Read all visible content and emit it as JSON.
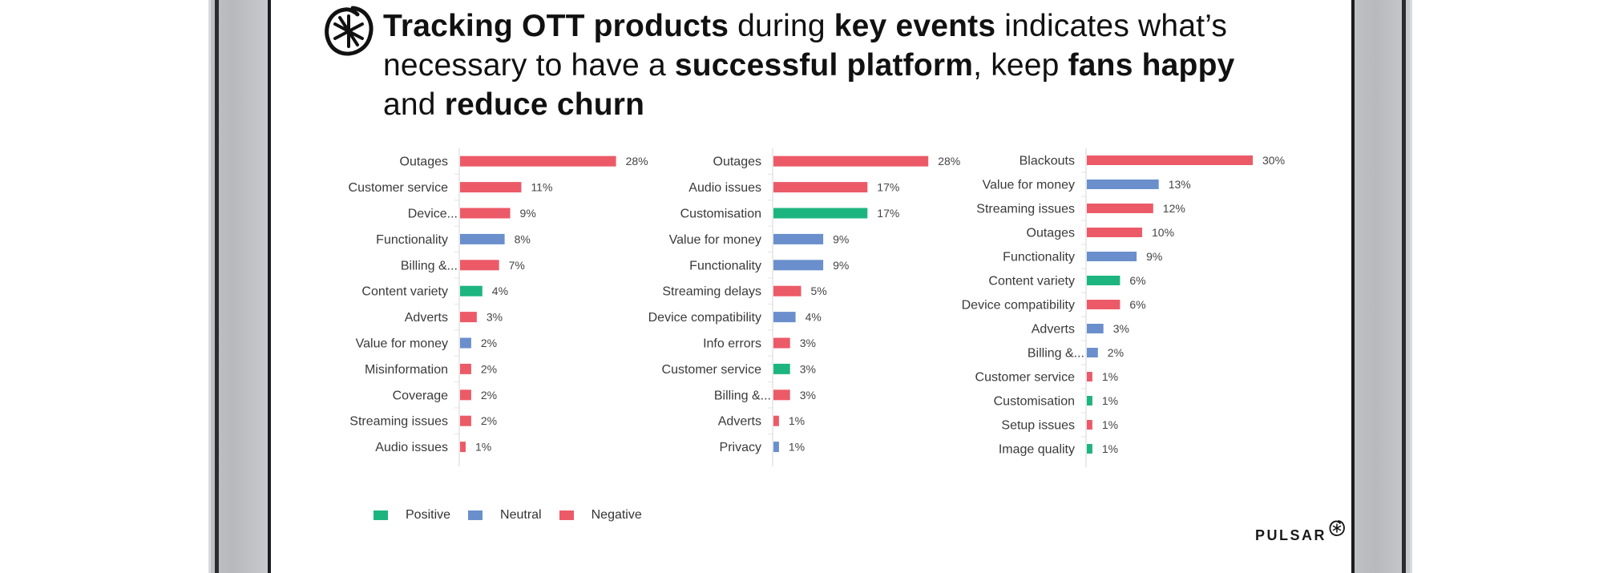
{
  "title": {
    "segments": [
      {
        "text": "Tracking OTT products",
        "bold": true
      },
      {
        "text": " during ",
        "bold": false
      },
      {
        "text": "key events",
        "bold": true
      },
      {
        "text": " indicates what’s necessary to have a ",
        "bold": false
      },
      {
        "text": "successful platform",
        "bold": true
      },
      {
        "text": ", keep ",
        "bold": false
      },
      {
        "text": "fans happy",
        "bold": true
      },
      {
        "text": " and ",
        "bold": false
      },
      {
        "text": "reduce churn",
        "bold": true
      }
    ],
    "icon": "pulsar-asterisk-circle-icon"
  },
  "colors": {
    "positive": "#1db57f",
    "neutral": "#6a8fcc",
    "negative": "#ec5a68",
    "axis": "#e3e3e3"
  },
  "legend": [
    {
      "label": "Positive",
      "sentiment": "positive"
    },
    {
      "label": "Neutral",
      "sentiment": "neutral"
    },
    {
      "label": "Negative",
      "sentiment": "negative"
    }
  ],
  "brand": {
    "name": "PULSAR",
    "icon": "pulsar-logo-icon"
  },
  "chart_data": [
    {
      "type": "bar",
      "orientation": "horizontal",
      "title": "",
      "xlabel": "",
      "ylabel": "",
      "value_unit": "%",
      "xlim": [
        0,
        30
      ],
      "grid": false,
      "legend": "bottom-left",
      "categories": [
        "Outages",
        "Customer service",
        "Device...",
        "Functionality",
        "Billing &...",
        "Content variety",
        "Adverts",
        "Value for money",
        "Misinformation",
        "Coverage",
        "Streaming issues",
        "Audio issues"
      ],
      "values": [
        28,
        11,
        9,
        8,
        7,
        4,
        3,
        2,
        2,
        2,
        2,
        1
      ],
      "sentiment": [
        "negative",
        "negative",
        "negative",
        "neutral",
        "negative",
        "positive",
        "negative",
        "neutral",
        "negative",
        "negative",
        "negative",
        "negative"
      ],
      "labels": [
        "28%",
        "11%",
        "9%",
        "8%",
        "7%",
        "4%",
        "3%",
        "2%",
        "2%",
        "2%",
        "2%",
        "1%"
      ]
    },
    {
      "type": "bar",
      "orientation": "horizontal",
      "title": "",
      "xlabel": "",
      "ylabel": "",
      "value_unit": "%",
      "xlim": [
        0,
        30
      ],
      "grid": false,
      "legend": "bottom-left",
      "categories": [
        "Outages",
        "Audio issues",
        "Customisation",
        "Value for money",
        "Functionality",
        "Streaming delays",
        "Device compatibility",
        "Info errors",
        "Customer service",
        "Billing &...",
        "Adverts",
        "Privacy"
      ],
      "values": [
        28,
        17,
        17,
        9,
        9,
        5,
        4,
        3,
        3,
        3,
        1,
        1
      ],
      "sentiment": [
        "negative",
        "negative",
        "positive",
        "neutral",
        "neutral",
        "negative",
        "neutral",
        "negative",
        "positive",
        "negative",
        "negative",
        "neutral"
      ],
      "labels": [
        "28%",
        "17%",
        "17%",
        "9%",
        "9%",
        "5%",
        "4%",
        "3%",
        "3%",
        "3%",
        "1%",
        "1%"
      ]
    },
    {
      "type": "bar",
      "orientation": "horizontal",
      "title": "",
      "xlabel": "",
      "ylabel": "",
      "value_unit": "%",
      "xlim": [
        0,
        32
      ],
      "grid": false,
      "legend": "bottom-left",
      "categories": [
        "Blackouts",
        "Value for money",
        "Streaming issues",
        "Outages",
        "Functionality",
        "Content variety",
        "Device compatibility",
        "Adverts",
        "Billing &...",
        "Customer service",
        "Customisation",
        "Setup issues",
        "Image quality"
      ],
      "values": [
        30,
        13,
        12,
        10,
        9,
        6,
        6,
        3,
        2,
        1,
        1,
        1,
        1
      ],
      "sentiment": [
        "negative",
        "neutral",
        "negative",
        "negative",
        "neutral",
        "positive",
        "negative",
        "neutral",
        "neutral",
        "negative",
        "positive",
        "negative",
        "positive"
      ],
      "labels": [
        "30%",
        "13%",
        "12%",
        "10%",
        "9%",
        "6%",
        "6%",
        "3%",
        "2%",
        "1%",
        "1%",
        "1%",
        "1%"
      ]
    }
  ]
}
